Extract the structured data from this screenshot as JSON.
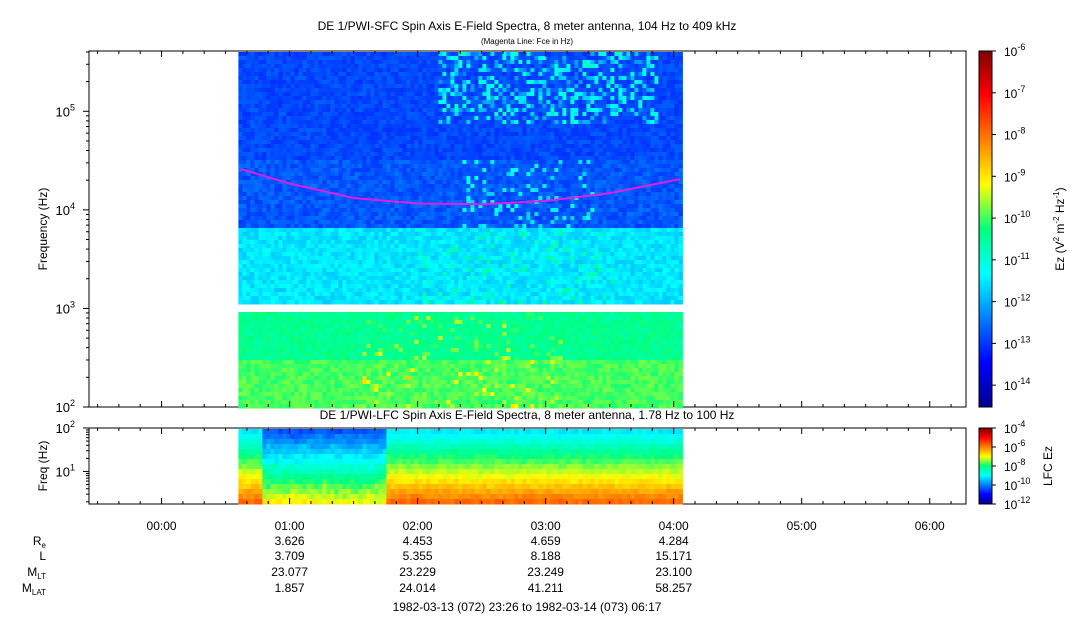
{
  "chart_data": [
    {
      "type": "heatmap",
      "title": "DE 1/PWI-SFC  Spin Axis E-Field Spectra, 8 meter antenna, 104 Hz to 409 kHz",
      "subtitle": "(Magenta Line: Fce in Hz)",
      "ylabel": "Frequency (Hz)",
      "yscale": "log",
      "ylim": [
        100,
        409000
      ],
      "y_ticks": [
        {
          "value": 100,
          "base": "10",
          "exp": "2"
        },
        {
          "value": 1000,
          "base": "10",
          "exp": "3"
        },
        {
          "value": 10000,
          "base": "10",
          "exp": "4"
        },
        {
          "value": 100000,
          "base": "10",
          "exp": "5"
        }
      ],
      "data_start": "00:36",
      "data_end": "04:03",
      "gap_band_hz": [
        960,
        1040
      ],
      "fce_line": {
        "name": "Fce in Hz",
        "color": "#e020e0",
        "points": [
          {
            "t": "00:37",
            "f": 26000
          },
          {
            "t": "01:00",
            "f": 18500
          },
          {
            "t": "01:30",
            "f": 13200
          },
          {
            "t": "02:00",
            "f": 11600
          },
          {
            "t": "02:30",
            "f": 11400
          },
          {
            "t": "03:00",
            "f": 12300
          },
          {
            "t": "03:30",
            "f": 14800
          },
          {
            "t": "04:03",
            "f": 20500
          }
        ]
      },
      "colorbar": {
        "label_base": "Ez (V",
        "label_rest": " m",
        "label_tail": " Hz",
        "label_end": ")",
        "label_exp1": "2",
        "label_exp2": "-2",
        "label_exp3": "-1",
        "scale": "log",
        "range": [
          3e-15,
          1e-06
        ],
        "ticks": [
          {
            "value": 1e-06,
            "base": "10",
            "exp": "-6"
          },
          {
            "value": 1e-07,
            "base": "10",
            "exp": "-7"
          },
          {
            "value": 1e-08,
            "base": "10",
            "exp": "-8"
          },
          {
            "value": 1e-09,
            "base": "10",
            "exp": "-9"
          },
          {
            "value": 1e-10,
            "base": "10",
            "exp": "-10"
          },
          {
            "value": 1e-11,
            "base": "10",
            "exp": "-11"
          },
          {
            "value": 1e-12,
            "base": "10",
            "exp": "-12"
          },
          {
            "value": 1e-13,
            "base": "10",
            "exp": "-13"
          },
          {
            "value": 1e-14,
            "base": "10",
            "exp": "-14"
          }
        ]
      }
    },
    {
      "type": "heatmap",
      "title": "DE 1/PWI-LFC  Spin Axis E-Field Spectra, 8 meter antenna, 1.78 Hz to 100 Hz",
      "ylabel": "Freq (Hz)",
      "yscale": "log",
      "ylim": [
        1.78,
        100
      ],
      "y_ticks": [
        {
          "value": 10,
          "base": "10",
          "exp": "1"
        },
        {
          "value": 100,
          "base": "10",
          "exp": "2"
        }
      ],
      "data_start": "00:36",
      "data_end": "04:03",
      "colorbar": {
        "label": "LFC Ez",
        "scale": "log",
        "range": [
          1e-12,
          0.0001
        ],
        "ticks": [
          {
            "value": 0.0001,
            "base": "10",
            "exp": "-4"
          },
          {
            "value": 1e-06,
            "base": "10",
            "exp": "-6"
          },
          {
            "value": 1e-08,
            "base": "10",
            "exp": "-8"
          },
          {
            "value": 1e-10,
            "base": "10",
            "exp": "-10"
          },
          {
            "value": 1e-12,
            "base": "10",
            "exp": "-12"
          }
        ]
      }
    }
  ],
  "time_axis": {
    "start": "-00:34",
    "end": "06:17",
    "labels": [
      "00:00",
      "01:00",
      "02:00",
      "03:00",
      "04:00",
      "05:00",
      "06:00"
    ],
    "minor_step_minutes": 10
  },
  "ephemeris": {
    "rows": [
      {
        "label": "R",
        "sub": "e",
        "values": [
          "3.626",
          "4.453",
          "4.659",
          "4.284"
        ]
      },
      {
        "label": "L",
        "sub": "",
        "values": [
          "3.709",
          "5.355",
          "8.188",
          "15.171"
        ]
      },
      {
        "label": "M",
        "sub": "LT",
        "values": [
          "23.077",
          "23.229",
          "23.249",
          "23.100"
        ]
      },
      {
        "label": "M",
        "sub": "LAT",
        "values": [
          "1.857",
          "24.014",
          "41.211",
          "58.257"
        ]
      }
    ],
    "times": [
      "01:00",
      "02:00",
      "03:00",
      "04:00"
    ]
  },
  "footer": {
    "range_text": "1982-03-13 (072) 23:26 to 1982-03-14 (073) 06:17"
  }
}
